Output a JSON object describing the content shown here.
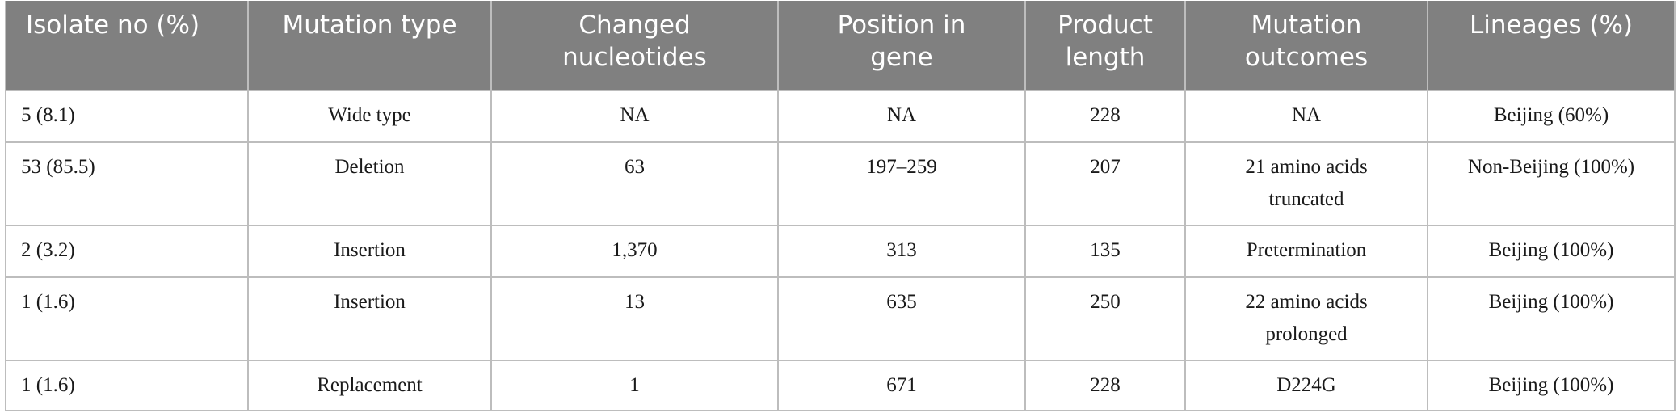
{
  "table": {
    "header": [
      "Isolate no (%)",
      "Mutation type",
      "Changed nucleotides",
      "Position in gene",
      "Product length",
      "Mutation outcomes",
      "Lineages (%)"
    ],
    "rows": [
      [
        "5 (8.1)",
        "Wide type",
        "NA",
        "NA",
        "228",
        "NA",
        "Beijing (60%)"
      ],
      [
        "53 (85.5)",
        "Deletion",
        "63",
        "197–259",
        "207",
        "21 amino acids truncated",
        "Non-Beijing (100%)"
      ],
      [
        "2 (3.2)",
        "Insertion",
        "1,370",
        "313",
        "135",
        "Pretermination",
        "Beijing (100%)"
      ],
      [
        "1 (1.6)",
        "Insertion",
        "13",
        "635",
        "250",
        "22 amino acids prolonged",
        "Beijing (100%)"
      ],
      [
        "1 (1.6)",
        "Replacement",
        "1",
        "671",
        "228",
        "D224G",
        "Beijing (100%)"
      ]
    ]
  }
}
